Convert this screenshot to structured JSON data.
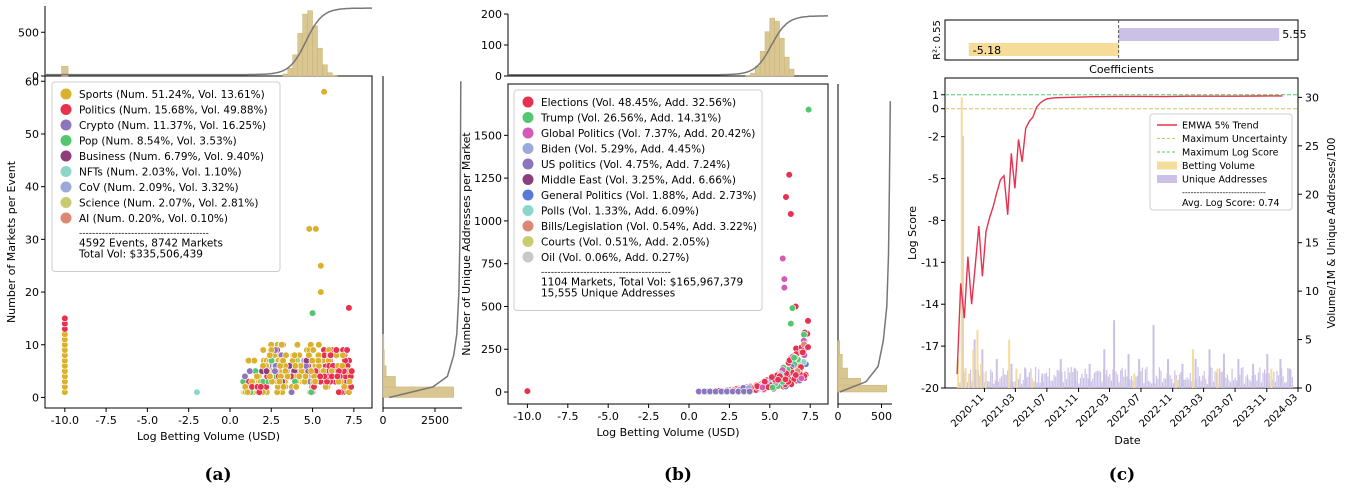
{
  "chart_data": [
    {
      "type": "scatter",
      "panel_label": "(a)",
      "xlabel": "Log Betting Volume (USD)",
      "ylabel": "Number of Markets per Event",
      "xlim": [
        -11.2,
        8.6
      ],
      "ylim": [
        -2,
        61
      ],
      "xticks": [
        "-10.0",
        "-7.5",
        "-5.0",
        "-2.5",
        "0.0",
        "2.5",
        "5.0",
        "7.5"
      ],
      "xtick_values": [
        -10,
        -7.5,
        -5,
        -2.5,
        0,
        2.5,
        5,
        7.5
      ],
      "yticks": [
        "0",
        "10",
        "20",
        "30",
        "40",
        "50",
        "60"
      ],
      "ytick_values": [
        0,
        10,
        20,
        30,
        40,
        50,
        60
      ],
      "top_hist": {
        "yticks": [
          "0",
          "500"
        ],
        "ytick_values": [
          0,
          500
        ],
        "ymax": 800
      },
      "right_hist": {
        "xticks": [
          "0",
          "2500"
        ],
        "xtick_values": [
          0,
          2500
        ],
        "xmax": 3800
      },
      "legend": {
        "placement": "upper-left",
        "entries": [
          {
            "label": "Sports (Num. 51.24%, Vol. 13.61%)",
            "color": "#dbb02b"
          },
          {
            "label": "Politics (Num. 15.68%, Vol. 49.88%)",
            "color": "#e8314f"
          },
          {
            "label": "Crypto (Num. 11.37%, Vol. 16.25%)",
            "color": "#8c76bd"
          },
          {
            "label": "Pop (Num. 8.54%, Vol. 3.53%)",
            "color": "#54c76e"
          },
          {
            "label": "Business (Num. 6.79%, Vol. 9.40%)",
            "color": "#8f3d7c"
          },
          {
            "label": "NFTs (Num. 2.03%, Vol. 1.10%)",
            "color": "#8cd6c8"
          },
          {
            "label": "CoV (Num. 2.09%, Vol. 3.32%)",
            "color": "#9aa9d8"
          },
          {
            "label": "Science (Num. 2.07%, Vol. 2.81%)",
            "color": "#c8cc70"
          },
          {
            "label": "AI (Num. 0.20%, Vol. 0.10%)",
            "color": "#da8a74"
          }
        ],
        "separator": "----------------------------------------",
        "summary": [
          "4592 Events, 8742 Markets",
          "Total Vol: $335,506,439"
        ]
      }
    },
    {
      "type": "scatter",
      "panel_label": "(b)",
      "xlabel": "Log Betting Volume (USD)",
      "ylabel": "Number of Unique Addresses per Market",
      "xlim": [
        -11.2,
        8.6
      ],
      "ylim": [
        -70,
        1800
      ],
      "xticks": [
        "-10.0",
        "-7.5",
        "-5.0",
        "-2.5",
        "0.0",
        "2.5",
        "5.0",
        "7.5"
      ],
      "xtick_values": [
        -10,
        -7.5,
        -5,
        -2.5,
        0,
        2.5,
        5,
        7.5
      ],
      "yticks": [
        "0",
        "250",
        "500",
        "750",
        "1000",
        "1250",
        "1500"
      ],
      "ytick_values": [
        0,
        250,
        500,
        750,
        1000,
        1250,
        1500
      ],
      "top_hist": {
        "yticks": [
          "0",
          "100",
          "200"
        ],
        "ytick_values": [
          0,
          100,
          200
        ],
        "ymax": 200
      },
      "right_hist": {
        "xticks": [
          "0",
          "500"
        ],
        "xtick_values": [
          0,
          500
        ],
        "xmax": 620
      },
      "legend": {
        "placement": "upper-left",
        "entries": [
          {
            "label": "Elections (Vol. 48.45%, Add. 32.56%)",
            "color": "#e8314f"
          },
          {
            "label": "Trump (Vol. 26.56%, Add. 14.31%)",
            "color": "#54c76e"
          },
          {
            "label": "Global Politics (Vol. 7.37%, Add. 20.42%)",
            "color": "#d35ab7"
          },
          {
            "label": "Biden (Vol. 5.29%, Add. 4.45%)",
            "color": "#9aa9d8"
          },
          {
            "label": "US politics (Vol. 4.75%, Add. 7.24%)",
            "color": "#8c76bd"
          },
          {
            "label": "Middle East (Vol. 3.25%, Add. 6.66%)",
            "color": "#8f3d7c"
          },
          {
            "label": "General Politics (Vol. 1.88%, Add. 2.73%)",
            "color": "#5a79d8"
          },
          {
            "label": "Polls (Vol. 1.33%, Add. 6.09%)",
            "color": "#8cd6c8"
          },
          {
            "label": "Bills/Legislation (Vol. 0.54%, Add. 3.22%)",
            "color": "#da8a74"
          },
          {
            "label": "Courts (Vol. 0.51%, Add. 2.05%)",
            "color": "#c8cc70"
          },
          {
            "label": "Oil (Vol. 0.06%, Add. 0.27%)",
            "color": "#c8c8c8"
          }
        ],
        "separator": "----------------------------------------",
        "summary": [
          "1104 Markets, Total Vol: $165,967,379",
          "15,555 Unique Addresses"
        ]
      }
    },
    {
      "type": "bar",
      "panel_label": "(c-top)",
      "xlabel": "Coefficients",
      "ylabel": "R²: 0.55",
      "categories": [
        "Betting Volume",
        "Unique Addresses"
      ],
      "values": [
        -5.18,
        5.55
      ],
      "value_labels": [
        "-5.18",
        "5.55"
      ],
      "colors": [
        "#f5dd99",
        "#cbc1e6"
      ],
      "xlim": [
        -6.0,
        6.2
      ]
    },
    {
      "type": "line",
      "panel_label": "(c)",
      "xlabel": "Date",
      "ylabel": "Log Score",
      "ylabel_right": "Volume/1M & Unique Addresses/100",
      "xlim": [
        "2020-06-01",
        "2024-03-01"
      ],
      "xticks": [
        "2020-11",
        "2021-03",
        "2021-07",
        "2021-11",
        "2022-03",
        "2022-07",
        "2022-11",
        "2023-03",
        "2023-07",
        "2023-11",
        "2024-03"
      ],
      "xtick_dates": [
        "2020-11-01",
        "2021-03-01",
        "2021-07-01",
        "2021-11-01",
        "2022-03-01",
        "2022-07-01",
        "2022-11-01",
        "2023-03-01",
        "2023-07-01",
        "2023-11-01",
        "2024-03-01"
      ],
      "ylim": [
        -20,
        2.2
      ],
      "yticks": [
        "-20",
        "-17",
        "-14",
        "-11",
        "-8",
        "-5",
        "-2",
        "0",
        "1"
      ],
      "ytick_values": [
        -20,
        -17,
        -14,
        -11,
        -8,
        -5,
        -2,
        0,
        1
      ],
      "ylim_right": [
        0,
        32
      ],
      "yticks_right": [
        "0",
        "5",
        "10",
        "15",
        "20",
        "25",
        "30"
      ],
      "ytick_values_right": [
        0,
        5,
        10,
        15,
        20,
        25,
        30
      ],
      "max_uncertainty": 0,
      "max_log_score": 1,
      "trend_series": {
        "name": "EMWA 5% Trend",
        "color": "#e8314f",
        "x": [
          "2020-07-18",
          "2020-08-01",
          "2020-08-15",
          "2020-08-29",
          "2020-09-12",
          "2020-09-26",
          "2020-10-10",
          "2020-10-24",
          "2020-11-07",
          "2020-11-21",
          "2020-12-05",
          "2020-12-19",
          "2021-01-02",
          "2021-01-16",
          "2021-01-30",
          "2021-02-13",
          "2021-02-27",
          "2021-03-13",
          "2021-03-27",
          "2021-04-10",
          "2021-04-24",
          "2021-05-08",
          "2021-05-22",
          "2021-06-05",
          "2021-06-19",
          "2021-07-03",
          "2021-08-01",
          "2021-10-01",
          "2022-01-01",
          "2022-04-01",
          "2022-07-01",
          "2022-10-01",
          "2023-01-01",
          "2023-04-01",
          "2023-07-01",
          "2023-10-01",
          "2024-01-01"
        ],
        "y": [
          -19.0,
          -12.5,
          -15.0,
          -10.6,
          -14.0,
          -11.3,
          -8.4,
          -12.0,
          -8.8,
          -7.8,
          -7.0,
          -6.0,
          -5.1,
          -4.8,
          -7.6,
          -3.2,
          -5.7,
          -2.2,
          -3.8,
          -1.4,
          -0.9,
          -0.6,
          0.1,
          0.4,
          0.6,
          0.72,
          0.78,
          0.82,
          0.86,
          0.88,
          0.88,
          0.87,
          0.9,
          0.9,
          0.9,
          0.91,
          0.92
        ]
      },
      "betting_volume": {
        "name": "Betting Volume",
        "color": "#f5dd99",
        "x": [
          "2020-07-18",
          "2020-08-01",
          "2020-08-15",
          "2020-08-29",
          "2020-09-15",
          "2020-10-01",
          "2020-10-15",
          "2020-11-01",
          "2021-02-01",
          "2021-03-01",
          "2021-05-01",
          "2022-06-01",
          "2022-11-10",
          "2023-01-15",
          "2023-04-20",
          "2023-11-15"
        ],
        "values": [
          3.0,
          30.0,
          2.0,
          1.5,
          4.0,
          6.0,
          2.5,
          1.5,
          5.0,
          2.0,
          1.0,
          1.5,
          1.0,
          4.0,
          2.0,
          2.0
        ]
      },
      "unique_addresses": {
        "name": "Unique Addresses",
        "color": "#cbc1e6",
        "x": [
          "2020-08-05",
          "2020-09-20",
          "2020-10-20",
          "2020-12-15",
          "2021-02-10",
          "2021-04-05",
          "2021-06-10",
          "2021-08-20",
          "2021-10-15",
          "2021-12-10",
          "2022-02-05",
          "2022-03-15",
          "2022-05-10",
          "2022-06-20",
          "2022-08-15",
          "2022-10-10",
          "2022-12-05",
          "2023-01-25",
          "2023-03-20",
          "2023-05-15",
          "2023-07-10",
          "2023-09-05",
          "2023-10-30",
          "2023-12-20",
          "2024-01-25"
        ],
        "values": [
          26.0,
          5.0,
          4.0,
          3.0,
          2.5,
          2.0,
          1.5,
          3.0,
          2.0,
          2.5,
          4.0,
          7.0,
          3.5,
          3.0,
          6.5,
          3.0,
          2.5,
          3.0,
          4.0,
          3.5,
          3.0,
          2.5,
          3.5,
          3.0,
          2.0
        ]
      },
      "legend": {
        "placement": "right",
        "entries": [
          {
            "label": "EMWA 5% Trend",
            "kind": "line",
            "color": "#e8314f"
          },
          {
            "label": "Maximum Uncertainty",
            "kind": "dashed",
            "color": "#c9c66a"
          },
          {
            "label": "Maximum Log Score",
            "kind": "dashed",
            "color": "#54c76e"
          },
          {
            "label": "Betting Volume",
            "kind": "patch",
            "color": "#f5dd99"
          },
          {
            "label": "Unique Addresses",
            "kind": "patch",
            "color": "#cbc1e6"
          }
        ],
        "separator": "-----------------------------",
        "summary": "Avg. Log Score: 0.74"
      }
    }
  ],
  "captions": [
    "(a)",
    "(b)",
    "(c)"
  ],
  "colors": {
    "hist": "#d9c690",
    "hist_edge": "#c8b477",
    "cdf": "#777777",
    "axis": "#000000"
  }
}
